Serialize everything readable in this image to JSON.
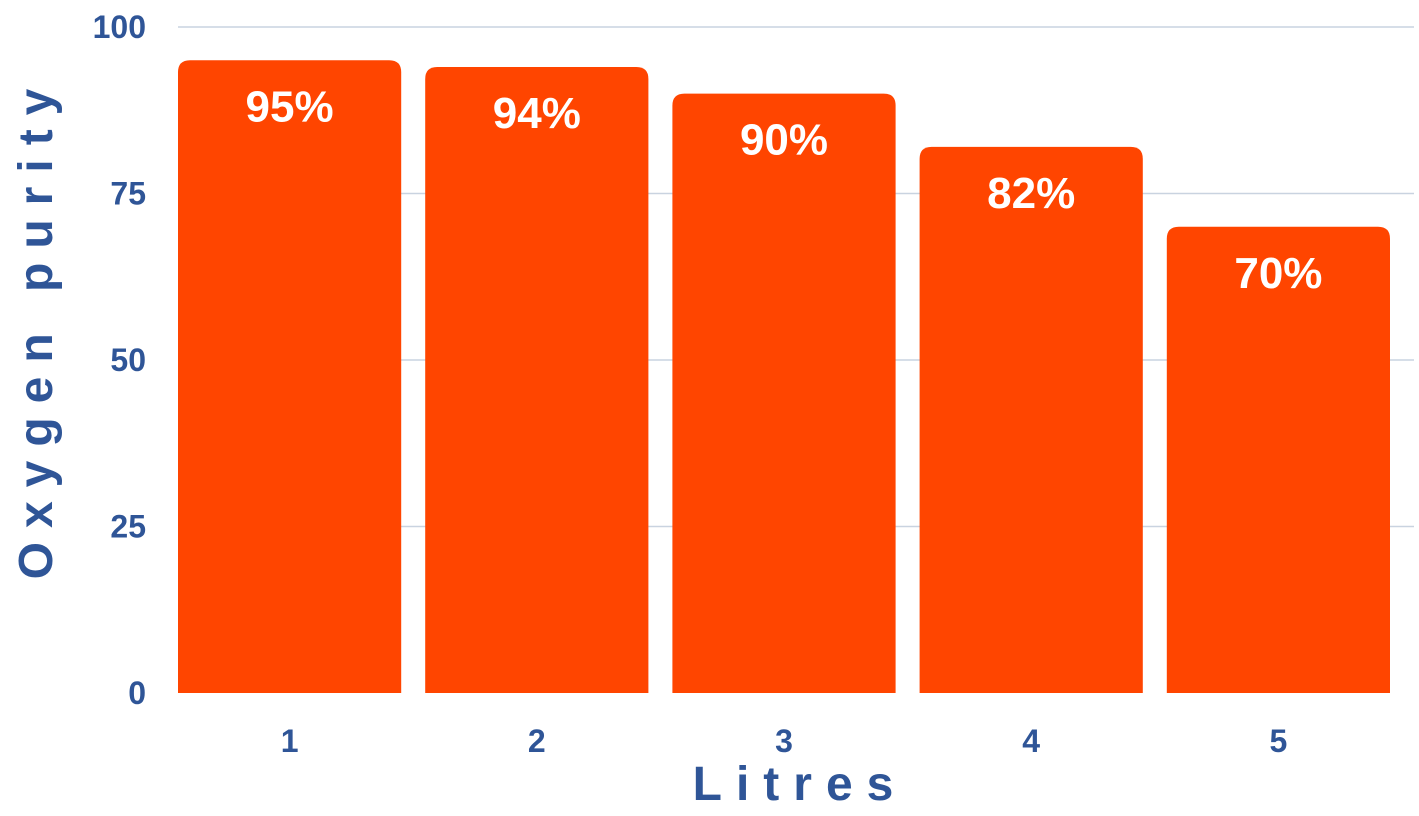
{
  "colors": {
    "bar": "#ff4500",
    "text": "#2f5597",
    "grid": "#c9d3e0",
    "label": "#ffffff"
  },
  "chart_data": {
    "type": "bar",
    "categories": [
      "1",
      "2",
      "3",
      "4",
      "5"
    ],
    "values": [
      95,
      94,
      90,
      82,
      70
    ],
    "data_labels": [
      "95%",
      "94%",
      "90%",
      "82%",
      "70%"
    ],
    "xlabel": "Litres",
    "ylabel": "Oxygen purity",
    "ylim": [
      0,
      100
    ],
    "yticks": [
      "0",
      "25",
      "50",
      "75",
      "100"
    ],
    "ytick_values": [
      0,
      25,
      50,
      75,
      100
    ],
    "grid": true,
    "legend": "none"
  }
}
